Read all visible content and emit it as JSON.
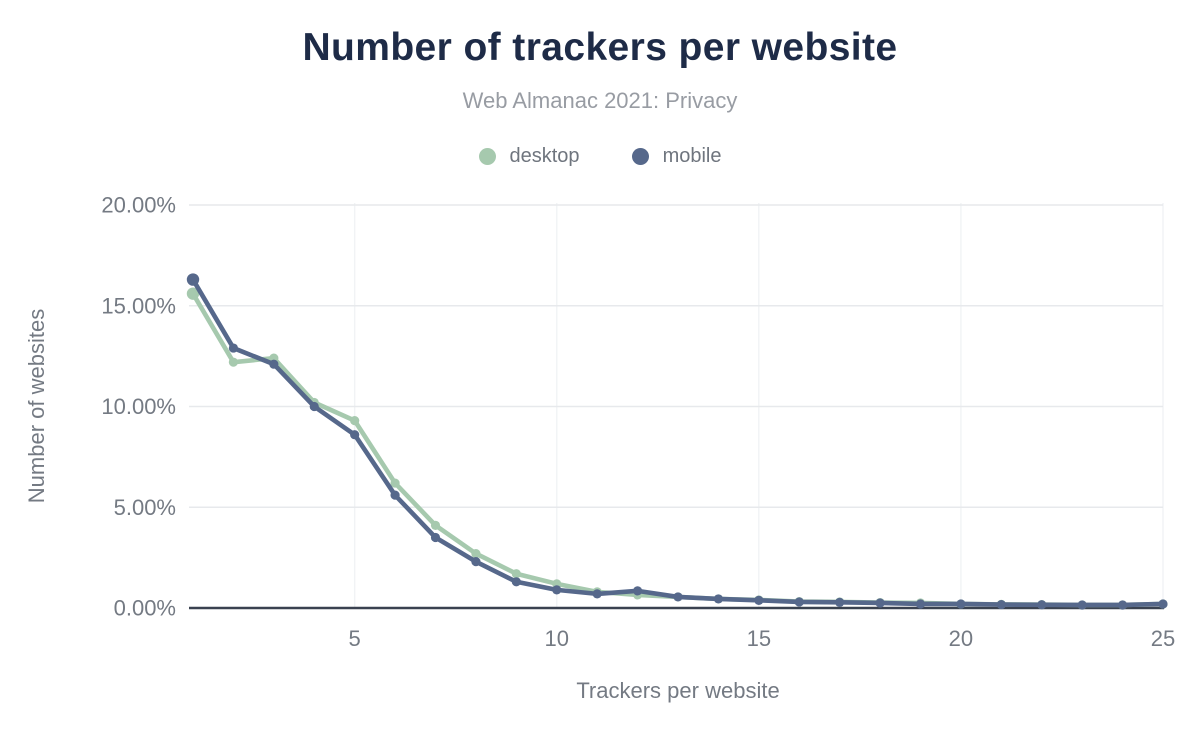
{
  "header": {
    "title": "Number of trackers per website",
    "subtitle": "Web Almanac 2021: Privacy"
  },
  "chart_data": {
    "type": "line",
    "title": "Number of trackers per website",
    "subtitle": "Web Almanac 2021: Privacy",
    "xlabel": "Trackers per website",
    "ylabel": "Number of websites",
    "x": [
      1,
      2,
      3,
      4,
      5,
      6,
      7,
      8,
      9,
      10,
      11,
      12,
      13,
      14,
      15,
      16,
      17,
      18,
      19,
      20,
      21,
      22,
      23,
      24,
      25
    ],
    "series": [
      {
        "name": "desktop",
        "color": "#a6c9ae",
        "values": [
          15.6,
          12.2,
          12.4,
          10.2,
          9.3,
          6.2,
          4.1,
          2.7,
          1.7,
          1.2,
          0.8,
          0.65,
          0.55,
          0.45,
          0.4,
          0.32,
          0.3,
          0.27,
          0.25,
          0.2,
          0.18,
          0.17,
          0.15,
          0.15,
          0.2
        ]
      },
      {
        "name": "mobile",
        "color": "#56688b",
        "values": [
          16.3,
          12.9,
          12.1,
          10.0,
          8.6,
          5.6,
          3.5,
          2.3,
          1.3,
          0.9,
          0.7,
          0.85,
          0.55,
          0.45,
          0.38,
          0.3,
          0.28,
          0.25,
          0.2,
          0.2,
          0.17,
          0.16,
          0.15,
          0.15,
          0.2
        ]
      }
    ],
    "xlim": [
      1,
      25
    ],
    "ylim": [
      0,
      20
    ],
    "x_ticks": [
      5,
      10,
      15,
      20,
      25
    ],
    "y_tick_values": [
      0,
      5,
      10,
      15,
      20
    ],
    "y_tick_labels": [
      "0.00%",
      "5.00%",
      "10.00%",
      "15.00%",
      "20.00%"
    ],
    "grid": true,
    "legend_position": "top",
    "colors": {
      "title": "#1e2b47",
      "subtitle": "#989ca3",
      "axis_text": "#747a83",
      "grid_h": "#e7e9ec",
      "grid_v": "#f1f3f5",
      "axis_line": "#3a4250",
      "background": "#ffffff"
    }
  }
}
